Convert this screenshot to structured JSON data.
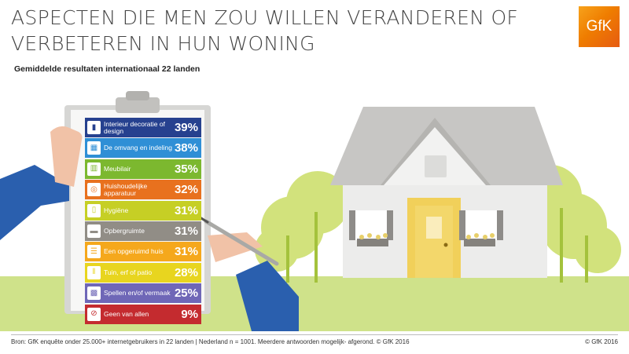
{
  "title_lines": [
    "ASPECTEN DIE MEN ZOU WILLEN VERANDEREN OF",
    "VERBETEREN IN HUN WONING"
  ],
  "subtitle": "Gemiddelde resultaten internationaal 22 landen",
  "logo_text": "GfK",
  "source": "Bron: GfK enquête onder 25.000+ internetgebruikers in 22 landen | Nederland n = 1001. Meerdere antwoorden mogelijk- afgerond. © GfK 2016",
  "copyright": "© GfK 2016",
  "chart_data": {
    "type": "table",
    "categories": [
      "Interieur decoratie of design",
      "De omvang en indeling",
      "Meubilair",
      "Huishoudelijke apparatuur",
      "Hygiëne",
      "Opbergruimte",
      "Een opgeruimd huis",
      "Tuin, erf of patio",
      "Spellen en/of vermaak",
      "Geen van allen"
    ],
    "values": [
      39,
      38,
      35,
      32,
      31,
      31,
      31,
      28,
      25,
      9
    ],
    "value_labels": [
      "39%",
      "38%",
      "35%",
      "32%",
      "31%",
      "31%",
      "31%",
      "28%",
      "25%",
      "9%"
    ],
    "colors": [
      "#26418f",
      "#2f8fd6",
      "#7cb82f",
      "#e8711e",
      "#c6cf25",
      "#918d86",
      "#f5a81c",
      "#e8d51f",
      "#6f67b7",
      "#c42b2f"
    ],
    "icons": [
      "paint-roller-icon",
      "floor-plan-icon",
      "cabinet-icon",
      "washing-machine-icon",
      "toilet-paper-icon",
      "storage-box-icon",
      "tidy-house-icon",
      "fence-icon",
      "game-controller-icon",
      "none-icon"
    ]
  }
}
